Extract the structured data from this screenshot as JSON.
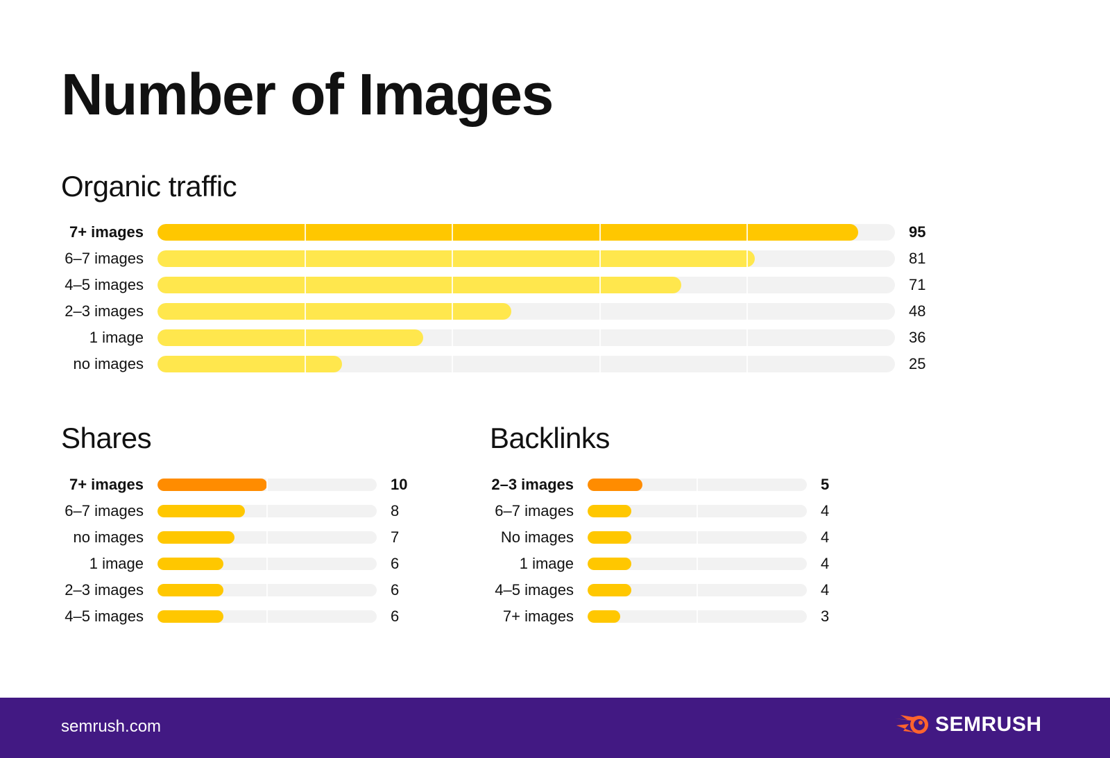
{
  "title": "Number of Images",
  "colors": {
    "highlight_primary": "#FFC700",
    "primary": "#FFE74D",
    "highlight_secondary": "#FF8C00",
    "secondary": "#FFC700",
    "track": "#F2F2F2",
    "footer": "#421983",
    "logo_orange": "#FF642D"
  },
  "chart_data": [
    {
      "type": "bar",
      "orientation": "horizontal",
      "title": "Organic traffic",
      "categories": [
        "7+ images",
        "6–7 images",
        "4–5 images",
        "2–3 images",
        "1 image",
        "no images"
      ],
      "values": [
        95,
        81,
        71,
        48,
        36,
        25
      ],
      "highlight_index": 0,
      "xlim": [
        0,
        100
      ],
      "gridlines": [
        20,
        40,
        60,
        80
      ]
    },
    {
      "type": "bar",
      "orientation": "horizontal",
      "title": "Shares",
      "categories": [
        "7+ images",
        "6–7 images",
        "no images",
        "1 image",
        "2–3 images",
        "4–5 images"
      ],
      "values": [
        10,
        8,
        7,
        6,
        6,
        6
      ],
      "highlight_index": 0,
      "xlim": [
        0,
        20
      ],
      "gridlines": [
        10
      ]
    },
    {
      "type": "bar",
      "orientation": "horizontal",
      "title": "Backlinks",
      "categories": [
        "2–3 images",
        "6–7 images",
        "No images",
        "1 image",
        "4–5 images",
        "7+ images"
      ],
      "values": [
        5,
        4,
        4,
        4,
        4,
        3
      ],
      "highlight_index": 0,
      "xlim": [
        0,
        20
      ],
      "gridlines": [
        10
      ]
    }
  ],
  "footer": {
    "site": "semrush.com",
    "logo_text": "SEMRUSH",
    "logo_icon": "semrush-fireball-icon"
  }
}
